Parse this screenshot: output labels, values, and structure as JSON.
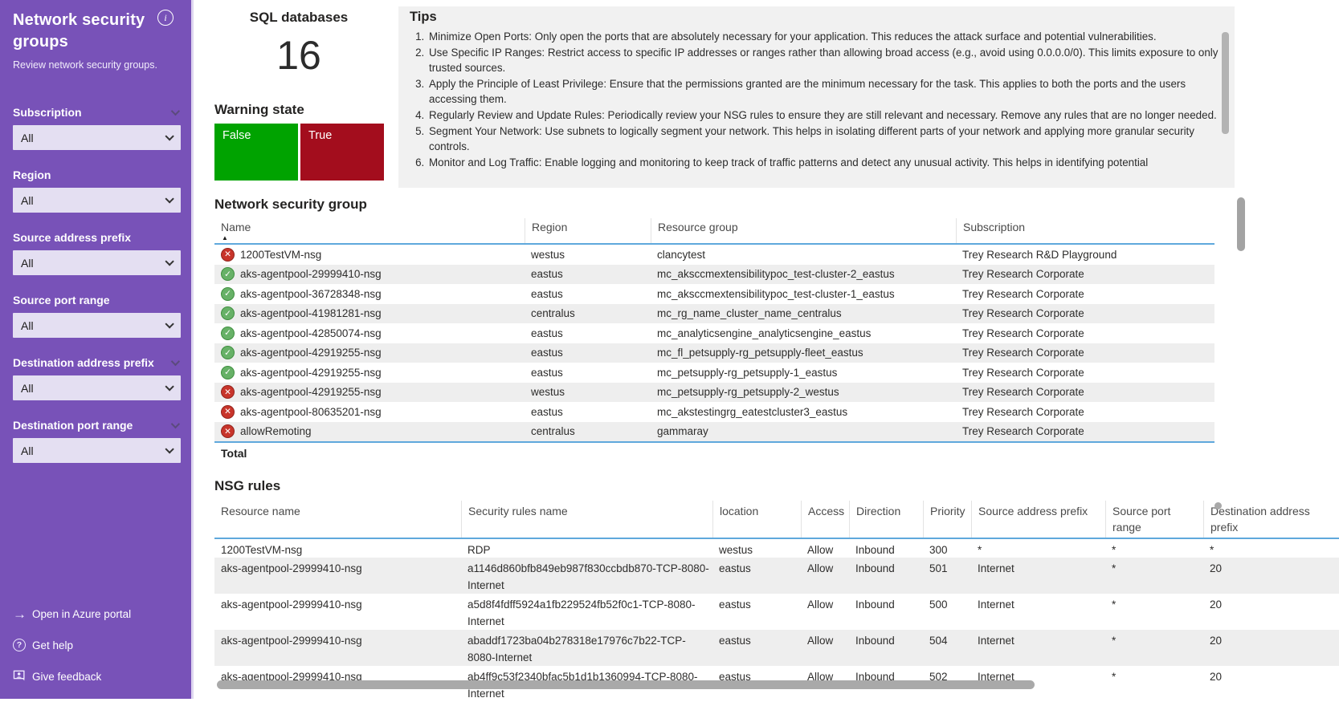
{
  "colors": {
    "sidebar_purple": "#7852b8",
    "dropdown_bg": "#e4dff2",
    "accent_blue": "#5fa8dc",
    "row_alt": "#eeeeee",
    "tips_bg": "#f1f1f1",
    "green_tile": "#00a300",
    "red_tile": "#a30d1d"
  },
  "sidebar": {
    "title": "Network security groups",
    "subtitle": "Review network security groups.",
    "info_icon": "i",
    "filters": [
      {
        "label": "Subscription",
        "value": "All",
        "label_chevron": true
      },
      {
        "label": "Region",
        "value": "All",
        "label_chevron": false
      },
      {
        "label": "Source address prefix",
        "value": "All",
        "label_chevron": false
      },
      {
        "label": "Source port range",
        "value": "All",
        "label_chevron": false
      },
      {
        "label": "Destination address prefix",
        "value": "All",
        "label_chevron": true
      },
      {
        "label": "Destination port range",
        "value": "All",
        "label_chevron": true
      }
    ],
    "links": [
      {
        "label": "Open in Azure portal",
        "icon": "arrow-right-icon"
      },
      {
        "label": "Get help",
        "icon": "help-circle-icon"
      },
      {
        "label": "Give feedback",
        "icon": "feedback-person-icon"
      }
    ]
  },
  "stats": {
    "sql_databases": {
      "title": "SQL databases",
      "value": "16"
    },
    "warning_state": {
      "title": "Warning state",
      "tiles": [
        {
          "label": "False",
          "color": "#00a300"
        },
        {
          "label": "True",
          "color": "#a30d1d"
        }
      ]
    }
  },
  "tips": {
    "title": "Tips",
    "items": [
      "Minimize Open Ports: Only open the ports that are absolutely necessary for your application. This reduces the attack surface and potential vulnerabilities.",
      "Use Specific IP Ranges: Restrict access to specific IP addresses or ranges rather than allowing broad access (e.g., avoid using 0.0.0.0/0). This limits exposure to only trusted sources.",
      "Apply the Principle of Least Privilege: Ensure that the permissions granted are the minimum necessary for the task. This applies to both the ports and the users accessing them.",
      "Regularly Review and Update Rules: Periodically review your NSG rules to ensure they are still relevant and necessary. Remove any rules that are no longer needed.",
      "Segment Your Network: Use subnets to logically segment your network. This helps in isolating different parts of your network and applying more granular security controls.",
      "Monitor and Log Traffic: Enable logging and monitoring to keep track of traffic patterns and detect any unusual activity. This helps in identifying potential"
    ]
  },
  "nsg_table": {
    "title": "Network security group",
    "columns": [
      "Name",
      "Region",
      "Resource group",
      "Subscription"
    ],
    "sorted_column": "Name",
    "rows": [
      {
        "status": "error",
        "name": "1200TestVM-nsg",
        "region": "westus",
        "resource_group": "clancytest",
        "subscription": "Trey Research R&D Playground"
      },
      {
        "status": "ok",
        "name": "aks-agentpool-29999410-nsg",
        "region": "eastus",
        "resource_group": "mc_aksccmextensibilitypoc_test-cluster-2_eastus",
        "subscription": "Trey Research Corporate"
      },
      {
        "status": "ok",
        "name": "aks-agentpool-36728348-nsg",
        "region": "eastus",
        "resource_group": "mc_aksccmextensibilitypoc_test-cluster-1_eastus",
        "subscription": "Trey Research Corporate"
      },
      {
        "status": "ok",
        "name": "aks-agentpool-41981281-nsg",
        "region": "centralus",
        "resource_group": "mc_rg_name_cluster_name_centralus",
        "subscription": "Trey Research Corporate"
      },
      {
        "status": "ok",
        "name": "aks-agentpool-42850074-nsg",
        "region": "eastus",
        "resource_group": "mc_analyticsengine_analyticsengine_eastus",
        "subscription": "Trey Research Corporate"
      },
      {
        "status": "ok",
        "name": "aks-agentpool-42919255-nsg",
        "region": "eastus",
        "resource_group": "mc_fl_petsupply-rg_petsupply-fleet_eastus",
        "subscription": "Trey Research Corporate"
      },
      {
        "status": "ok",
        "name": "aks-agentpool-42919255-nsg",
        "region": "eastus",
        "resource_group": "mc_petsupply-rg_petsupply-1_eastus",
        "subscription": "Trey Research Corporate"
      },
      {
        "status": "error",
        "name": "aks-agentpool-42919255-nsg",
        "region": "westus",
        "resource_group": "mc_petsupply-rg_petsupply-2_westus",
        "subscription": "Trey Research Corporate"
      },
      {
        "status": "error",
        "name": "aks-agentpool-80635201-nsg",
        "region": "eastus",
        "resource_group": "mc_akstestingrg_eatestcluster3_eastus",
        "subscription": "Trey Research Corporate"
      },
      {
        "status": "error",
        "name": "allowRemoting",
        "region": "centralus",
        "resource_group": "gammaray",
        "subscription": "Trey Research Corporate"
      }
    ],
    "footer": "Total"
  },
  "rules_table": {
    "title": "NSG rules",
    "columns": [
      "Resource name",
      "Security rules name",
      "location",
      "Access",
      "Direction",
      "Priority",
      "Source address prefix",
      "Source port range",
      "Destination address prefix"
    ],
    "rows": [
      {
        "resource": "1200TestVM-nsg",
        "rule": "RDP",
        "location": "westus",
        "access": "Allow",
        "direction": "Inbound",
        "priority": "300",
        "src_prefix": "*",
        "src_port": "*",
        "dst_prefix": "*"
      },
      {
        "resource": "aks-agentpool-29999410-nsg",
        "rule": "a1146d860bfb849eb987f830ccbdb870-TCP-8080-Internet",
        "location": "eastus",
        "access": "Allow",
        "direction": "Inbound",
        "priority": "501",
        "src_prefix": "Internet",
        "src_port": "*",
        "dst_prefix": "20"
      },
      {
        "resource": "aks-agentpool-29999410-nsg",
        "rule": "a5d8f4fdff5924a1fb229524fb52f0c1-TCP-8080-Internet",
        "location": "eastus",
        "access": "Allow",
        "direction": "Inbound",
        "priority": "500",
        "src_prefix": "Internet",
        "src_port": "*",
        "dst_prefix": "20"
      },
      {
        "resource": "aks-agentpool-29999410-nsg",
        "rule": "abaddf1723ba04b278318e17976c7b22-TCP-8080-Internet",
        "location": "eastus",
        "access": "Allow",
        "direction": "Inbound",
        "priority": "504",
        "src_prefix": "Internet",
        "src_port": "*",
        "dst_prefix": "20"
      },
      {
        "resource": "aks-agentpool-29999410-nsg",
        "rule": "ab4ff9c53f2340bfac5b1d1b1360994-TCP-8080-Internet",
        "location": "eastus",
        "access": "Allow",
        "direction": "Inbound",
        "priority": "502",
        "src_prefix": "Internet",
        "src_port": "*",
        "dst_prefix": "20"
      }
    ]
  }
}
